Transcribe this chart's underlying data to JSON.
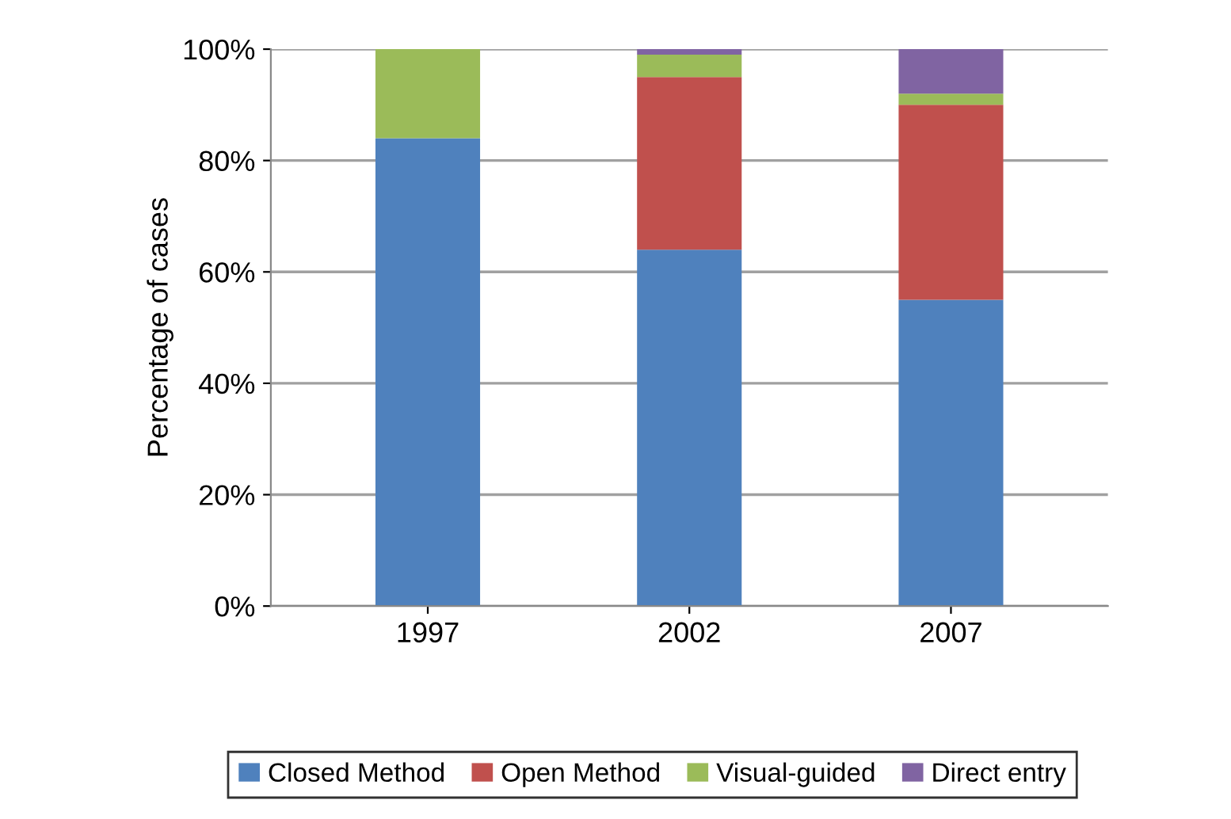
{
  "chart_data": {
    "type": "bar",
    "stacked": true,
    "ylabel": "Percentage of cases",
    "categories": [
      "1997",
      "2002",
      "2007"
    ],
    "series": [
      {
        "name": "Closed Method",
        "color": "#4f81bd",
        "values": [
          84,
          64,
          55
        ]
      },
      {
        "name": "Open Method",
        "color": "#c0504d",
        "values": [
          0,
          31,
          35
        ]
      },
      {
        "name": "Visual-guided",
        "color": "#9bbb59",
        "values": [
          16,
          4,
          2
        ]
      },
      {
        "name": "Direct entry",
        "color": "#8064a2",
        "values": [
          0,
          1,
          8
        ]
      }
    ],
    "ylim": [
      0,
      100
    ],
    "yticks": [
      {
        "value": 0,
        "label": "0%"
      },
      {
        "value": 20,
        "label": "20%"
      },
      {
        "value": 40,
        "label": "40%"
      },
      {
        "value": 60,
        "label": "60%"
      },
      {
        "value": 80,
        "label": "80%"
      },
      {
        "value": 100,
        "label": "100%"
      }
    ],
    "grid": "y",
    "legend": "bottom"
  }
}
